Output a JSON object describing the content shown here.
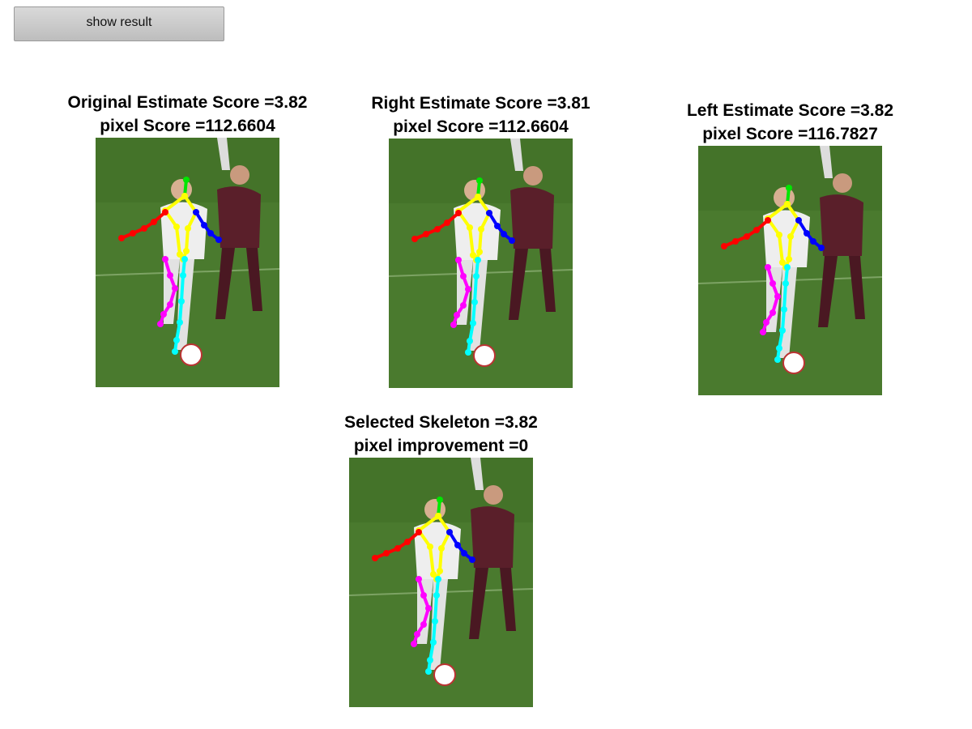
{
  "toolbar": {
    "show_result_label": "show result"
  },
  "panels": [
    {
      "id": "original",
      "title_line1": "Original Estimate Score =3.82",
      "title_line2": "pixel Score =112.6604"
    },
    {
      "id": "right",
      "title_line1": "Right Estimate Score =3.81",
      "title_line2": "pixel Score =112.6604"
    },
    {
      "id": "left",
      "title_line1": "Left Estimate Score =3.82",
      "title_line2": "pixel Score =116.7827"
    },
    {
      "id": "selected",
      "title_line1": "Selected Skeleton =3.82",
      "title_line2": "pixel improvement =0"
    }
  ],
  "colors": {
    "head": "#00e600",
    "torso": "#ffff00",
    "right_arm": "#ff0000",
    "left_arm": "#0000ff",
    "right_leg": "#ff00ff",
    "left_leg": "#00ffff",
    "grass": "#4a7a2e",
    "player_white": "#eeeeee",
    "player_maroon": "#5a1f2a"
  }
}
